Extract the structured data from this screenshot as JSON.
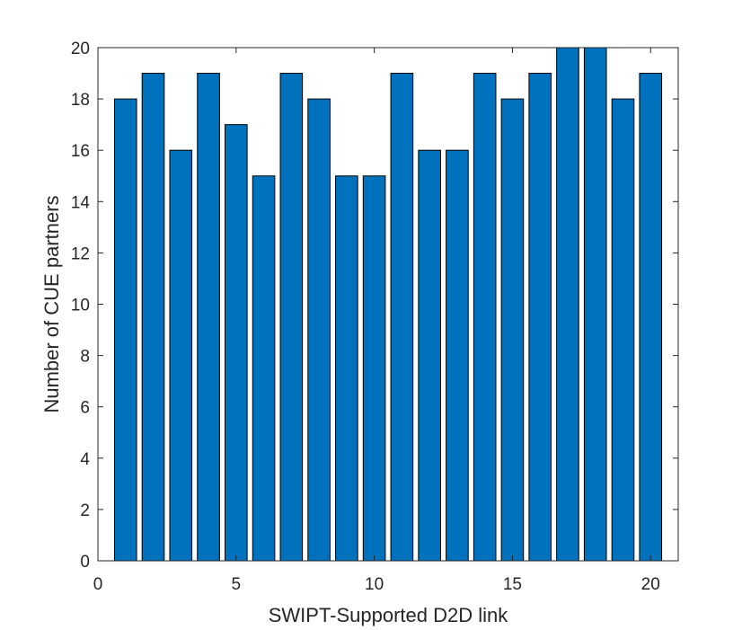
{
  "chart_data": {
    "type": "bar",
    "x": [
      1,
      2,
      3,
      4,
      5,
      6,
      7,
      8,
      9,
      10,
      11,
      12,
      13,
      14,
      15,
      16,
      17,
      18,
      19,
      20
    ],
    "values": [
      18,
      19,
      16,
      19,
      17,
      15,
      19,
      18,
      15,
      15,
      19,
      16,
      16,
      19,
      18,
      19,
      20,
      20,
      18,
      19
    ],
    "title": "",
    "xlabel": "SWIPT-Supported D2D link",
    "ylabel": "Number of CUE partners",
    "xlim": [
      0,
      21
    ],
    "ylim": [
      0,
      20
    ],
    "xticks": [
      0,
      5,
      10,
      15,
      20
    ],
    "yticks": [
      0,
      2,
      4,
      6,
      8,
      10,
      12,
      14,
      16,
      18,
      20
    ],
    "grid": false,
    "bar_color": "#0072bd",
    "edge_color": "#000000"
  }
}
